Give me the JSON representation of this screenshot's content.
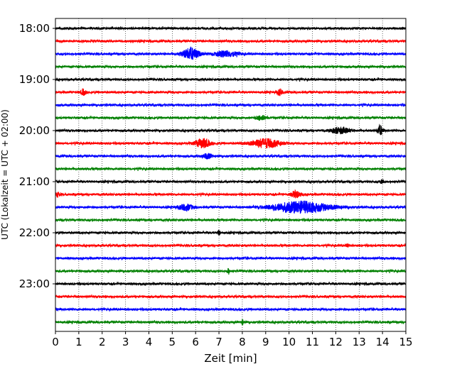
{
  "chart_data": {
    "type": "line",
    "xlabel": "Zeit  [min]",
    "ylabel": "UTC (Lokalzeit = UTC + 02:00)",
    "xlim": [
      0,
      15
    ],
    "x_ticks": [
      0,
      1,
      2,
      3,
      4,
      5,
      6,
      7,
      8,
      9,
      10,
      11,
      12,
      13,
      14,
      15
    ],
    "y_ticks": [
      "18:00",
      "19:00",
      "20:00",
      "21:00",
      "22:00",
      "23:00"
    ],
    "grid": "vertical-dotted",
    "trace_colors": [
      "#000000",
      "#ff0000",
      "#0000ff",
      "#008000"
    ],
    "traces": [
      {
        "start": "18:00",
        "events": []
      },
      {
        "start": "18:15",
        "events": []
      },
      {
        "start": "18:30",
        "events": [
          {
            "t": 5.8,
            "amp": 1.0,
            "dur": 0.35
          },
          {
            "t": 7.3,
            "amp": 0.5,
            "dur": 0.5
          }
        ]
      },
      {
        "start": "18:45",
        "events": []
      },
      {
        "start": "19:00",
        "events": []
      },
      {
        "start": "19:15",
        "events": [
          {
            "t": 1.2,
            "amp": 0.5,
            "dur": 0.1
          },
          {
            "t": 9.6,
            "amp": 0.5,
            "dur": 0.1
          }
        ]
      },
      {
        "start": "19:30",
        "events": []
      },
      {
        "start": "19:45",
        "events": [
          {
            "t": 8.8,
            "amp": 0.4,
            "dur": 0.2
          }
        ]
      },
      {
        "start": "20:00",
        "events": [
          {
            "t": 12.2,
            "amp": 0.5,
            "dur": 0.4
          },
          {
            "t": 13.9,
            "amp": 0.8,
            "dur": 0.12
          }
        ]
      },
      {
        "start": "20:15",
        "events": [
          {
            "t": 6.3,
            "amp": 0.8,
            "dur": 0.3
          },
          {
            "t": 9.0,
            "amp": 0.8,
            "dur": 0.6
          }
        ]
      },
      {
        "start": "20:30",
        "events": [
          {
            "t": 6.5,
            "amp": 0.4,
            "dur": 0.2
          }
        ]
      },
      {
        "start": "20:45",
        "events": []
      },
      {
        "start": "21:00",
        "events": [
          {
            "t": 14.0,
            "amp": 0.35,
            "dur": 0.1
          }
        ]
      },
      {
        "start": "21:15",
        "events": [
          {
            "t": 10.3,
            "amp": 0.6,
            "dur": 0.2
          },
          {
            "t": 0.1,
            "amp": 0.4,
            "dur": 0.1
          }
        ]
      },
      {
        "start": "21:30",
        "events": [
          {
            "t": 10.5,
            "amp": 1.0,
            "dur": 1.2
          },
          {
            "t": 5.6,
            "amp": 0.5,
            "dur": 0.3
          }
        ]
      },
      {
        "start": "21:45",
        "events": []
      },
      {
        "start": "22:00",
        "events": [
          {
            "t": 7.0,
            "amp": 0.4,
            "dur": 0.05
          }
        ]
      },
      {
        "start": "22:15",
        "events": [
          {
            "t": 12.5,
            "amp": 0.4,
            "dur": 0.05
          }
        ]
      },
      {
        "start": "22:30",
        "events": []
      },
      {
        "start": "22:45",
        "events": [
          {
            "t": 7.4,
            "amp": 0.4,
            "dur": 0.05
          }
        ]
      },
      {
        "start": "23:00",
        "events": []
      },
      {
        "start": "23:15",
        "events": []
      },
      {
        "start": "23:30",
        "events": []
      },
      {
        "start": "23:45",
        "events": [
          {
            "t": 8.0,
            "amp": 0.4,
            "dur": 0.05
          }
        ]
      }
    ]
  }
}
